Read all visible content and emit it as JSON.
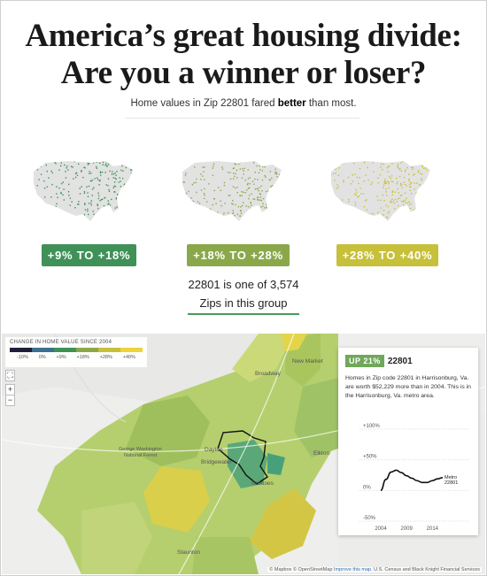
{
  "header": {
    "title_line1": "America’s great housing divide:",
    "title_line2": "Are you a winner or loser?",
    "subtitle_pre": "Home values in Zip 22801 fared ",
    "subtitle_bold": "better",
    "subtitle_post": " than most."
  },
  "groups": [
    {
      "label": "+9% TO +18%",
      "color": "#3f9158"
    },
    {
      "label": "+18% TO +28%",
      "color": "#8aa84a"
    },
    {
      "label": "+28% TO +40%",
      "color": "#c6c03a"
    }
  ],
  "group_info": {
    "line1": "22801 is one of 3,574",
    "line2": "Zips in this group"
  },
  "legend": {
    "title": "CHANGE IN HOME VALUE SINCE 2004",
    "ticks": [
      "-10%",
      "0%",
      "+9%",
      "+18%",
      "+28%",
      "+40%"
    ],
    "colors": [
      "#1f1f3a",
      "#3d6f8e",
      "#3f9158",
      "#8aa84a",
      "#c6c03a",
      "#f0d23a"
    ]
  },
  "map_controls": {
    "fullscreen": "⛶",
    "zoom_in": "+",
    "zoom_out": "−"
  },
  "map_labels": {
    "new_market": "New Market",
    "broadway": "Broadway",
    "elkton": "Elkton",
    "grottoes": "Grottoes",
    "bridgewater": "Bridgewater",
    "dayton": "Dayton",
    "staunton": "Staunton",
    "forest1": "George Washington",
    "forest2": "National Forest"
  },
  "info_panel": {
    "badge": "UP 21%",
    "zip": "22801",
    "description": "Homes in Zip code 22801 in Harrisonburg, Va. are worth $52,229 more than in 2004. This is in the Harrisonburg, Va. metro area."
  },
  "chart_data": {
    "type": "line",
    "x": [
      2004,
      2005,
      2006,
      2007,
      2008,
      2009,
      2010,
      2011,
      2012,
      2013,
      2014,
      2015,
      2016
    ],
    "series": [
      {
        "name": "Metro 22801",
        "values": [
          0,
          18,
          30,
          33,
          29,
          24,
          20,
          16,
          13,
          13,
          16,
          19,
          21
        ]
      }
    ],
    "y_ticks": [
      "+100%",
      "+50%",
      "0%",
      "-50%"
    ],
    "x_ticks": [
      "2004",
      "2009",
      "2014"
    ],
    "ylim": [
      -50,
      100
    ],
    "series_label_1": "Metro",
    "series_label_2": "22801",
    "grid": true
  },
  "attribution": {
    "mapbox": "© Mapbox",
    "osm": "© OpenStreetMap",
    "improve": "Improve this map",
    "source": ". U.S. Census and Black Knight Financial Services"
  }
}
